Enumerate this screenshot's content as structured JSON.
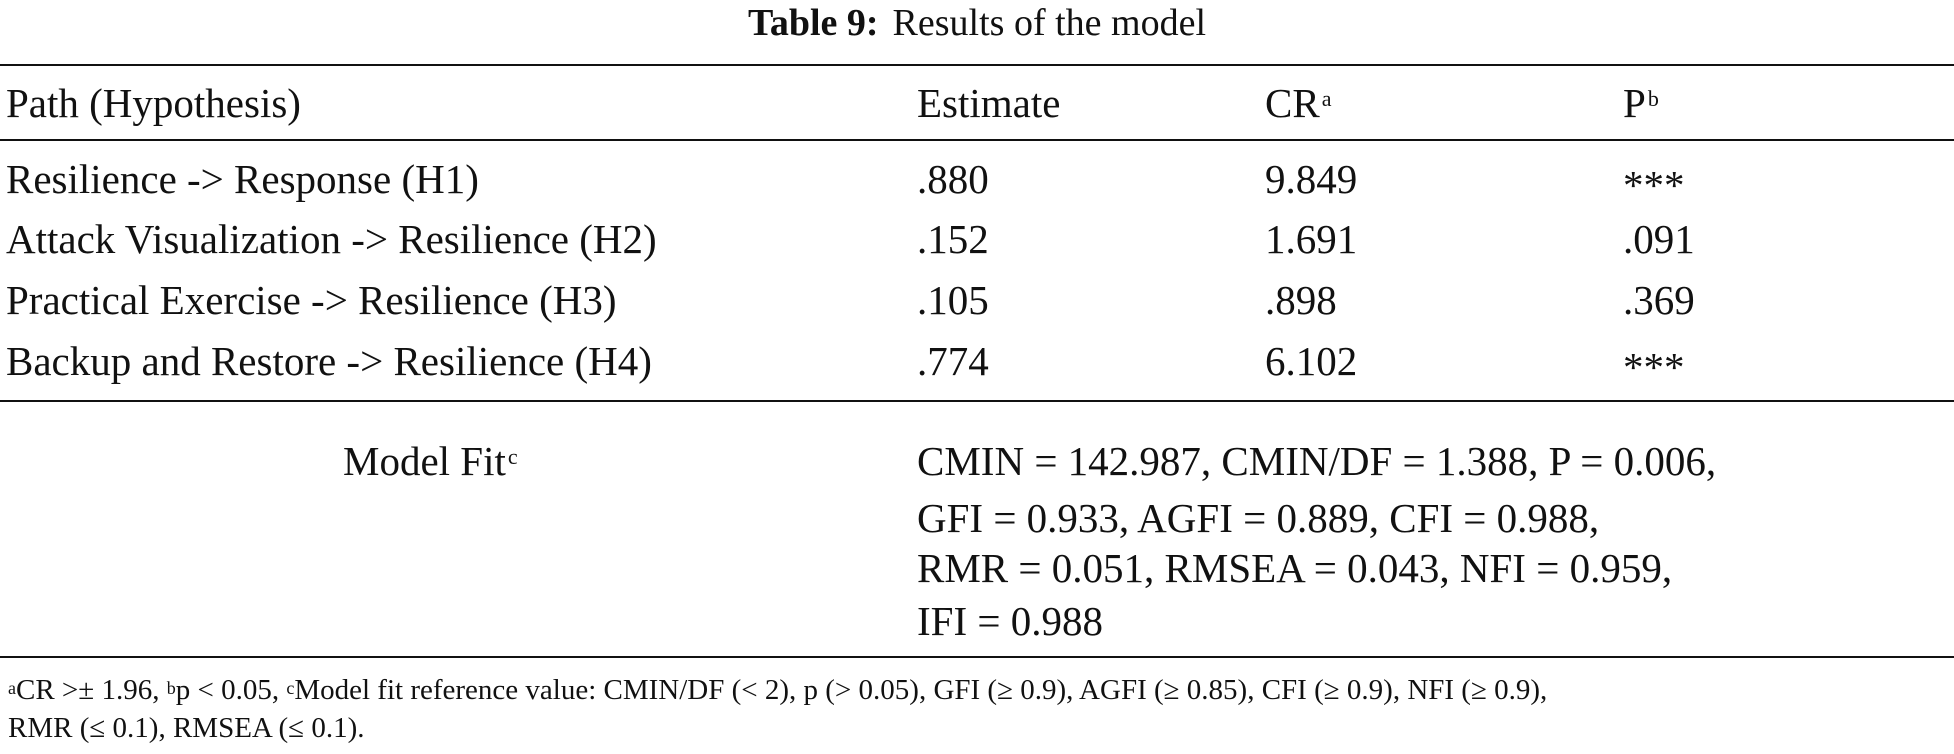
{
  "caption": {
    "label": "Table 9:",
    "title": "Results of the model"
  },
  "table": {
    "headers": {
      "path": "Path (Hypothesis)",
      "estimate": "Estimate",
      "cr": "CR",
      "cr_mark": "a",
      "p": "P",
      "p_mark": "b"
    },
    "rows": [
      {
        "path": "Resilience -> Response (H1)",
        "estimate": ".880",
        "cr": "9.849",
        "p": "***"
      },
      {
        "path": "Attack Visualization -> Resilience (H2)",
        "estimate": ".152",
        "cr": "1.691",
        "p": ".091"
      },
      {
        "path": "Practical Exercise -> Resilience (H3)",
        "estimate": ".105",
        "cr": ".898",
        "p": ".369"
      },
      {
        "path": "Backup and Restore -> Resilience (H4)",
        "estimate": ".774",
        "cr": "6.102",
        "p": "***"
      }
    ],
    "model_fit": {
      "label": "Model Fit",
      "label_mark": "c",
      "lines": [
        "CMIN = 142.987, CMIN/DF = 1.388, P = 0.006,",
        "GFI = 0.933, AGFI = 0.889, CFI = 0.988,",
        "RMR = 0.051, RMSEA = 0.043, NFI = 0.959,",
        "IFI = 0.988"
      ]
    }
  },
  "footnotes": {
    "a_mark": "a",
    "a_text": "CR >± 1.96, ",
    "b_mark": "b",
    "b_text": "p < 0.05, ",
    "c_mark": "c",
    "c_text": "Model fit reference value: CMIN/DF (< 2), p (> 0.05), GFI (≥ 0.9), AGFI (≥ 0.85), CFI (≥ 0.9), NFI (≥ 0.9),",
    "line2": "RMR (≤ 0.1), RMSEA (≤ 0.1)."
  }
}
